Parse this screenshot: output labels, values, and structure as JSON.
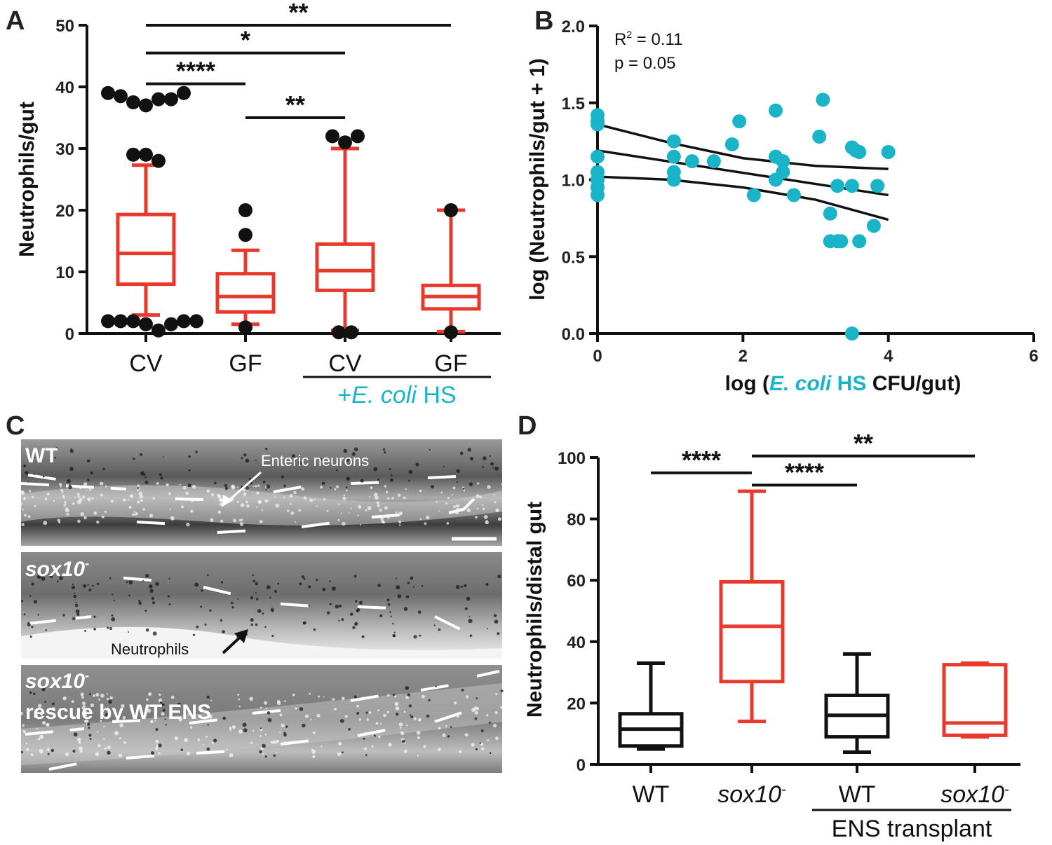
{
  "colors": {
    "red": "#e8392c",
    "black": "#111111",
    "teal": "#1ab4c8",
    "micro_bg": "#8c8c8c"
  },
  "panel_labels": {
    "a": "A",
    "b": "B",
    "c": "C",
    "d": "D"
  },
  "chart_data": [
    {
      "panel": "A",
      "type": "box",
      "ylabel": "Neutrophils/gut",
      "ylim": [
        0,
        50
      ],
      "yticks": [
        0,
        10,
        20,
        30,
        40,
        50
      ],
      "categories": [
        "CV",
        "GF",
        "CV",
        "GF"
      ],
      "group_label": {
        "prefix": "+",
        "italic": "E. coli",
        "suffix": " HS"
      },
      "boxes": [
        {
          "category": "CV",
          "min": 3,
          "q1": 8,
          "median": 13,
          "q3": 19.3,
          "max": 27.3,
          "outliers": [
            39,
            38.5,
            37.5,
            37,
            38,
            38,
            39,
            29,
            29,
            28,
            2,
            2,
            2,
            1.5,
            0.5,
            1.5,
            2,
            2
          ]
        },
        {
          "category": "GF",
          "min": 1.5,
          "q1": 3.5,
          "median": 6,
          "q3": 9.7,
          "max": 13.5,
          "outliers": [
            20,
            16,
            1
          ]
        },
        {
          "category": "CV",
          "min": 0.5,
          "q1": 7,
          "median": 10.2,
          "q3": 14.5,
          "max": 30,
          "outliers": [
            32,
            31,
            32,
            0.2,
            0.2
          ]
        },
        {
          "category": "GF",
          "min": 0.3,
          "q1": 4,
          "median": 6,
          "q3": 7.8,
          "max": 20,
          "outliers": [
            20,
            0.2
          ]
        }
      ],
      "significance": [
        {
          "from": 0,
          "to": 3,
          "label": "**",
          "y": 50
        },
        {
          "from": 0,
          "to": 2,
          "label": "*",
          "y": 45.5
        },
        {
          "from": 0,
          "to": 1,
          "label": "****",
          "y": 40.5
        },
        {
          "from": 1,
          "to": 2,
          "label": "**",
          "y": 35
        }
      ]
    },
    {
      "panel": "B",
      "type": "scatter",
      "xlabel": {
        "prefix": "log (",
        "italic": "E. coli",
        "mid": " HS",
        "suffix": " CFU/gut)"
      },
      "ylabel": "log (Neutrophils/gut + 1)",
      "xlim": [
        0,
        6
      ],
      "ylim": [
        0,
        2
      ],
      "xticks": [
        0,
        2,
        4,
        6
      ],
      "yticks": [
        "0.0",
        "0.5",
        "1.0",
        "1.5",
        "2.0"
      ],
      "annotation": {
        "r2_prefix": "R",
        "r2_sup": "2",
        "r2_value": " = 0.11",
        "p": "p = 0.05"
      },
      "points": [
        [
          0,
          1.42
        ],
        [
          0,
          1.38
        ],
        [
          0,
          1.36
        ],
        [
          0,
          1.15
        ],
        [
          0,
          1.05
        ],
        [
          0,
          1.0
        ],
        [
          0,
          0.95
        ],
        [
          0,
          0.9
        ],
        [
          1.05,
          1.25
        ],
        [
          1.05,
          1.15
        ],
        [
          1.05,
          1.05
        ],
        [
          1.05,
          1.0
        ],
        [
          1.3,
          1.12
        ],
        [
          1.6,
          1.12
        ],
        [
          1.85,
          1.23
        ],
        [
          1.95,
          1.38
        ],
        [
          2.15,
          0.9
        ],
        [
          2.45,
          1.45
        ],
        [
          2.45,
          1.15
        ],
        [
          2.45,
          1.0
        ],
        [
          2.55,
          1.12
        ],
        [
          2.55,
          1.05
        ],
        [
          2.7,
          0.9
        ],
        [
          3.05,
          1.28
        ],
        [
          3.1,
          1.52
        ],
        [
          3.2,
          0.78
        ],
        [
          3.2,
          0.6
        ],
        [
          3.3,
          0.96
        ],
        [
          3.3,
          0.6
        ],
        [
          3.35,
          0.6
        ],
        [
          3.5,
          1.21
        ],
        [
          3.5,
          0.96
        ],
        [
          3.5,
          0.0
        ],
        [
          3.55,
          1.19
        ],
        [
          3.6,
          1.18
        ],
        [
          3.6,
          0.6
        ],
        [
          3.8,
          0.7
        ],
        [
          3.85,
          0.96
        ],
        [
          4.0,
          1.18
        ]
      ],
      "fit": {
        "x0": 0,
        "x1": 4,
        "y0": 1.19,
        "y1": 0.9,
        "ci_upper": [
          [
            0,
            1.36
          ],
          [
            1,
            1.24
          ],
          [
            2,
            1.14
          ],
          [
            3,
            1.09
          ],
          [
            4,
            1.07
          ]
        ],
        "ci_lower": [
          [
            0,
            1.02
          ],
          [
            1,
            1.0
          ],
          [
            2,
            0.95
          ],
          [
            3,
            0.87
          ],
          [
            4,
            0.74
          ]
        ]
      }
    },
    {
      "panel": "D",
      "type": "box",
      "ylabel": "Neutrophils/distal gut",
      "ylim": [
        0,
        100
      ],
      "yticks": [
        0,
        20,
        40,
        60,
        80,
        100
      ],
      "categories": [
        "WT",
        "sox10-",
        "WT",
        "sox10-"
      ],
      "group_label": "ENS transplant",
      "boxes": [
        {
          "category": "WT",
          "min": 5,
          "q1": 6,
          "median": 11.5,
          "q3": 16.5,
          "max": 33,
          "color": "black"
        },
        {
          "category": "sox10-",
          "min": 14,
          "q1": 27,
          "median": 45,
          "q3": 59.5,
          "max": 89,
          "color": "red"
        },
        {
          "category": "WT",
          "min": 4,
          "q1": 9,
          "median": 16,
          "q3": 22.5,
          "max": 36,
          "color": "black"
        },
        {
          "category": "sox10-",
          "min": 9,
          "q1": 9.5,
          "median": 13.5,
          "q3": 32.5,
          "max": 33,
          "color": "red"
        }
      ],
      "significance": [
        {
          "from": 1,
          "to": 3,
          "label": "**",
          "y": 100.5
        },
        {
          "from": 0,
          "to": 1,
          "label": "****",
          "y": 95
        },
        {
          "from": 1,
          "to": 2,
          "label": "****",
          "y": 91
        }
      ]
    }
  ],
  "micrographs": {
    "top": {
      "label": "WT",
      "annotation": "Enteric neurons"
    },
    "middle": {
      "label_main": "sox10",
      "label_sup": "-",
      "annotation": "Neutrophils"
    },
    "bottom": {
      "label_main": "sox10",
      "label_sup": "-",
      "label_line2": "rescue by WT ENS"
    }
  }
}
